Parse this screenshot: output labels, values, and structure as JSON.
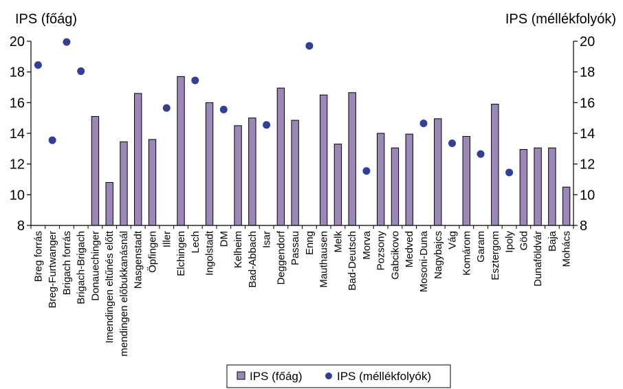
{
  "chart_data": {
    "type": "bar",
    "y_left_title": "IPS (főág)",
    "y_right_title": "IPS (méllékfolyók)",
    "ylim": [
      8,
      20
    ],
    "yticks": [
      8,
      10,
      12,
      14,
      16,
      18,
      20
    ],
    "categories": [
      "Breg forrás",
      "Breg-Furtwanger",
      "Brigach forrás",
      "Brigach-Brigach",
      "Donauechinger",
      "Imendingen eltűnés előtt",
      "mendingen előbukkanásnál",
      "Nasgenstadt",
      "Öpfingen",
      "Iller",
      "Elchingen",
      "Lech",
      "Ingolstadt",
      "DM",
      "Kelheim",
      "Bad-Abbach",
      "Isar",
      "Deggendorf",
      "Passau",
      "Enng",
      "Mauthausen",
      "Melk",
      "Bad-Deutsch",
      "Morva",
      "Pozsony",
      "Gabcikovo",
      "Medved",
      "Mosoni-Duna",
      "Nagybajcs",
      "Vág",
      "Komárom",
      "Garam",
      "Esztergom",
      "Ipoly",
      "Göd",
      "Dunaföldvár",
      "Baja",
      "Mohács"
    ],
    "series": [
      {
        "name": "IPS (főág)",
        "kind": "bar",
        "axis": "left",
        "color": "#9b87b8",
        "values": [
          null,
          null,
          null,
          null,
          15.1,
          10.8,
          13.45,
          16.6,
          13.6,
          null,
          17.7,
          null,
          16.0,
          null,
          14.5,
          15.0,
          null,
          16.95,
          14.85,
          null,
          16.5,
          13.3,
          16.65,
          null,
          14.0,
          13.05,
          13.95,
          null,
          14.95,
          null,
          13.8,
          null,
          15.9,
          null,
          12.95,
          13.05,
          13.05,
          10.5
        ]
      },
      {
        "name": "IPS (méllékfolyók)",
        "kind": "scatter",
        "axis": "right",
        "color": "#2f3f9a",
        "values": [
          18.45,
          13.55,
          19.95,
          18.05,
          null,
          null,
          null,
          null,
          null,
          15.65,
          null,
          17.45,
          null,
          15.55,
          null,
          null,
          14.55,
          null,
          null,
          19.7,
          null,
          null,
          null,
          11.55,
          null,
          null,
          null,
          14.65,
          null,
          13.35,
          null,
          12.65,
          null,
          11.45,
          null,
          null,
          null,
          null
        ]
      }
    ],
    "legend": {
      "position": "bottom"
    }
  }
}
